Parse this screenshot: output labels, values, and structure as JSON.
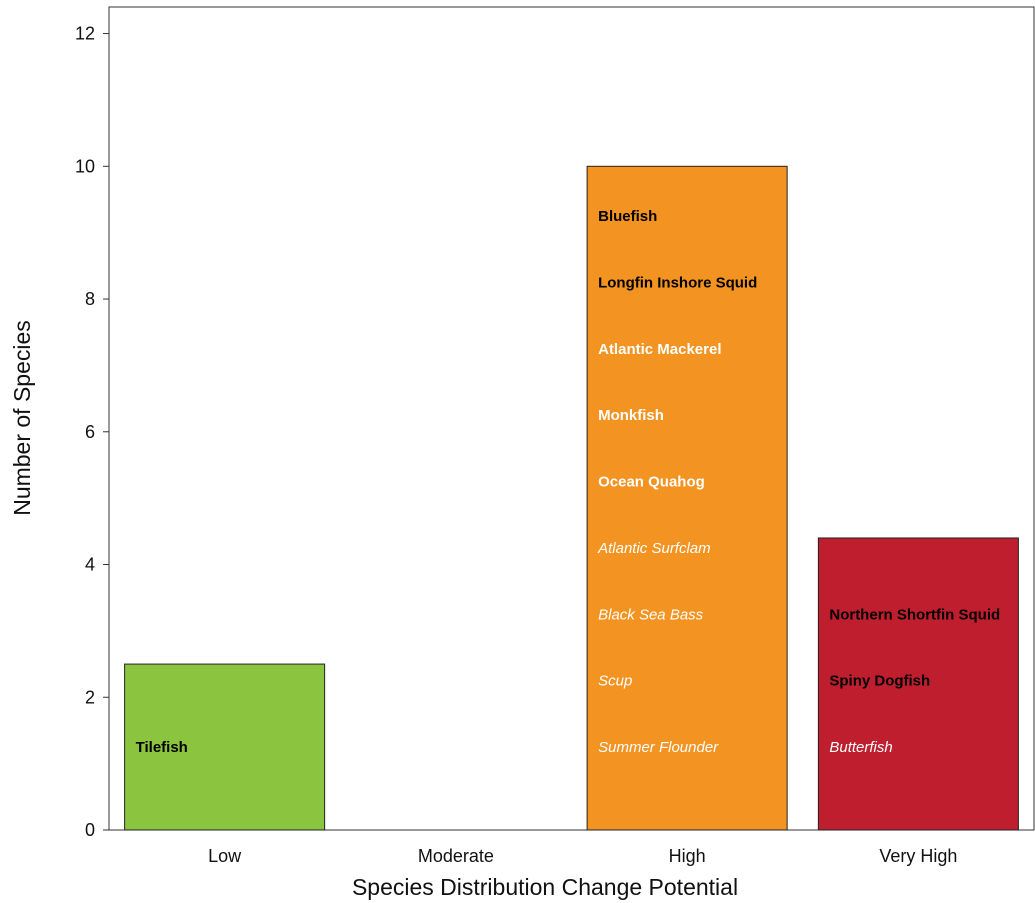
{
  "chart_data": {
    "type": "bar",
    "title": "",
    "xlabel": "Species Distribution Change Potential",
    "ylabel": "Number of Species",
    "ylim": [
      0,
      12.4
    ],
    "y_ticks": [
      0,
      2,
      4,
      6,
      8,
      10,
      12
    ],
    "grid": false,
    "legend": "none",
    "categories": [
      "Low",
      "Moderate",
      "High",
      "Very High"
    ],
    "values": [
      2.5,
      0,
      10,
      4.4
    ],
    "colors": [
      "#8BC53F",
      "#FFFFFF",
      "#F39321",
      "#BF1E2E"
    ],
    "bar_labels": [
      [
        {
          "text": "Tilefish",
          "y": 1.25,
          "style": "bold",
          "color": "#000000"
        }
      ],
      [],
      [
        {
          "text": "Bluefish",
          "y": 9.25,
          "style": "bold",
          "color": "#000000"
        },
        {
          "text": "Longfin Inshore Squid",
          "y": 8.25,
          "style": "bold",
          "color": "#000000"
        },
        {
          "text": "Atlantic Mackerel",
          "y": 7.25,
          "style": "bold",
          "color": "#FFFFFF"
        },
        {
          "text": "Monkfish",
          "y": 6.25,
          "style": "bold",
          "color": "#FFFFFF"
        },
        {
          "text": "Ocean Quahog",
          "y": 5.25,
          "style": "bold",
          "color": "#FFFFFF"
        },
        {
          "text": "Atlantic Surfclam",
          "y": 4.25,
          "style": "italic",
          "color": "#FFFFFF"
        },
        {
          "text": "Black Sea Bass",
          "y": 3.25,
          "style": "italic",
          "color": "#FFFFFF"
        },
        {
          "text": "Scup",
          "y": 2.25,
          "style": "italic",
          "color": "#FFFFFF"
        },
        {
          "text": "Summer Flounder",
          "y": 1.25,
          "style": "italic",
          "color": "#FFFFFF"
        }
      ],
      [
        {
          "text": "Northern Shortfin Squid",
          "y": 3.25,
          "style": "bold",
          "color": "#000000"
        },
        {
          "text": "Spiny Dogfish",
          "y": 2.25,
          "style": "bold",
          "color": "#000000"
        },
        {
          "text": "Butterfish",
          "y": 1.25,
          "style": "italic",
          "color": "#FFFFFF"
        }
      ]
    ]
  }
}
